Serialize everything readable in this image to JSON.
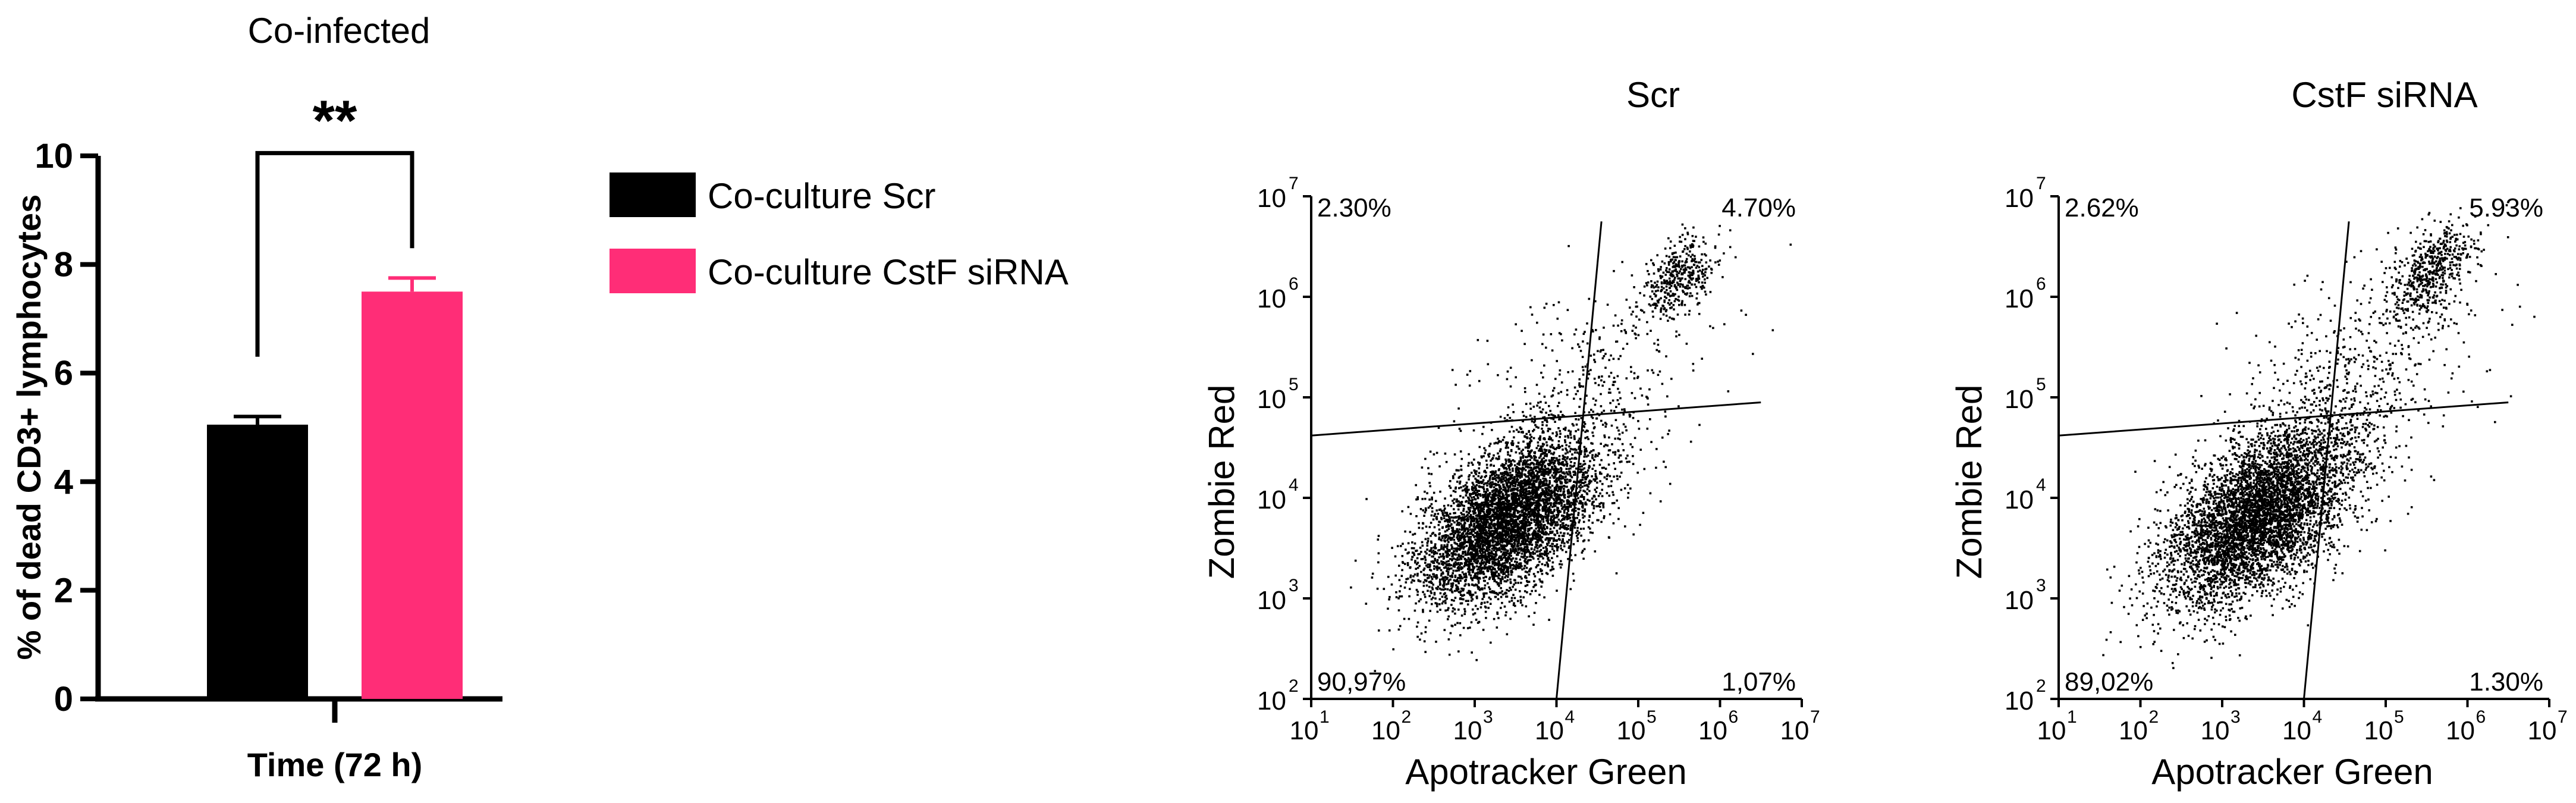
{
  "chart_data": [
    {
      "type": "bar",
      "title": "Co-infected",
      "xlabel": "Time (72 h)",
      "ylabel": "% of dead CD3+ lymphocytes",
      "ylim": [
        0,
        10
      ],
      "yticks": [
        "0",
        "2",
        "4",
        "6",
        "8",
        "10"
      ],
      "series": [
        {
          "name": "Co-culture Scr",
          "value": 5.05,
          "error": 0.15,
          "color": "#000000"
        },
        {
          "name": "Co-culture CstF siRNA",
          "value": 7.5,
          "error": 0.25,
          "color": "#ff2d77"
        }
      ],
      "significance": "**",
      "legend": "right"
    },
    {
      "type": "scatter",
      "title": "Scr",
      "xlabel": "Apotracker Green",
      "ylabel": "Zombie Red",
      "xscale": "log",
      "yscale": "log",
      "xlim": [
        10,
        10000000
      ],
      "ylim": [
        100,
        10000000
      ],
      "xticks": [
        {
          "base": "10",
          "exp": "1"
        },
        {
          "base": "10",
          "exp": "2"
        },
        {
          "base": "10",
          "exp": "3"
        },
        {
          "base": "10",
          "exp": "4"
        },
        {
          "base": "10",
          "exp": "5"
        },
        {
          "base": "10",
          "exp": "6"
        },
        {
          "base": "10",
          "exp": "7"
        }
      ],
      "yticks": [
        {
          "base": "10",
          "exp": "2"
        },
        {
          "base": "10",
          "exp": "3"
        },
        {
          "base": "10",
          "exp": "4"
        },
        {
          "base": "10",
          "exp": "5"
        },
        {
          "base": "10",
          "exp": "6"
        },
        {
          "base": "10",
          "exp": "7"
        }
      ],
      "quadrants": {
        "top_left": "2.30%",
        "top_right": "4.70%",
        "bottom_left": "90,97%",
        "bottom_right": "1,07%"
      },
      "populations": [
        {
          "x": 2500,
          "y": 6300,
          "sx_decades": 0.55,
          "sy_decades": 0.42,
          "rho": 0.55,
          "count": 5200
        },
        {
          "x": 25000,
          "y": 120000,
          "sx_decades": 0.75,
          "sy_decades": 0.55,
          "rho": 0.5,
          "count": 380
        },
        {
          "x": 300000,
          "y": 1600000,
          "sx_decades": 0.22,
          "sy_decades": 0.2,
          "rho": 0.5,
          "count": 420
        }
      ]
    },
    {
      "type": "scatter",
      "title": "CstF siRNA",
      "xlabel": "Apotracker Green",
      "ylabel": "Zombie Red",
      "xscale": "log",
      "yscale": "log",
      "xlim": [
        10,
        10000000
      ],
      "ylim": [
        100,
        10000000
      ],
      "xticks": [
        {
          "base": "10",
          "exp": "1"
        },
        {
          "base": "10",
          "exp": "2"
        },
        {
          "base": "10",
          "exp": "3"
        },
        {
          "base": "10",
          "exp": "4"
        },
        {
          "base": "10",
          "exp": "5"
        },
        {
          "base": "10",
          "exp": "6"
        },
        {
          "base": "10",
          "exp": "7"
        }
      ],
      "yticks": [
        {
          "base": "10",
          "exp": "2"
        },
        {
          "base": "10",
          "exp": "3"
        },
        {
          "base": "10",
          "exp": "4"
        },
        {
          "base": "10",
          "exp": "5"
        },
        {
          "base": "10",
          "exp": "6"
        },
        {
          "base": "10",
          "exp": "7"
        }
      ],
      "quadrants": {
        "top_left": "2.62%",
        "top_right": "5.93%",
        "bottom_left": "89,02%",
        "bottom_right": "1.30%"
      },
      "populations": [
        {
          "x": 2800,
          "y": 7000,
          "sx_decades": 0.58,
          "sy_decades": 0.45,
          "rho": 0.55,
          "count": 5200
        },
        {
          "x": 35000,
          "y": 160000,
          "sx_decades": 0.8,
          "sy_decades": 0.6,
          "rho": 0.5,
          "count": 520
        },
        {
          "x": 350000,
          "y": 1800000,
          "sx_decades": 0.25,
          "sy_decades": 0.25,
          "rho": 0.5,
          "count": 560
        }
      ]
    }
  ]
}
